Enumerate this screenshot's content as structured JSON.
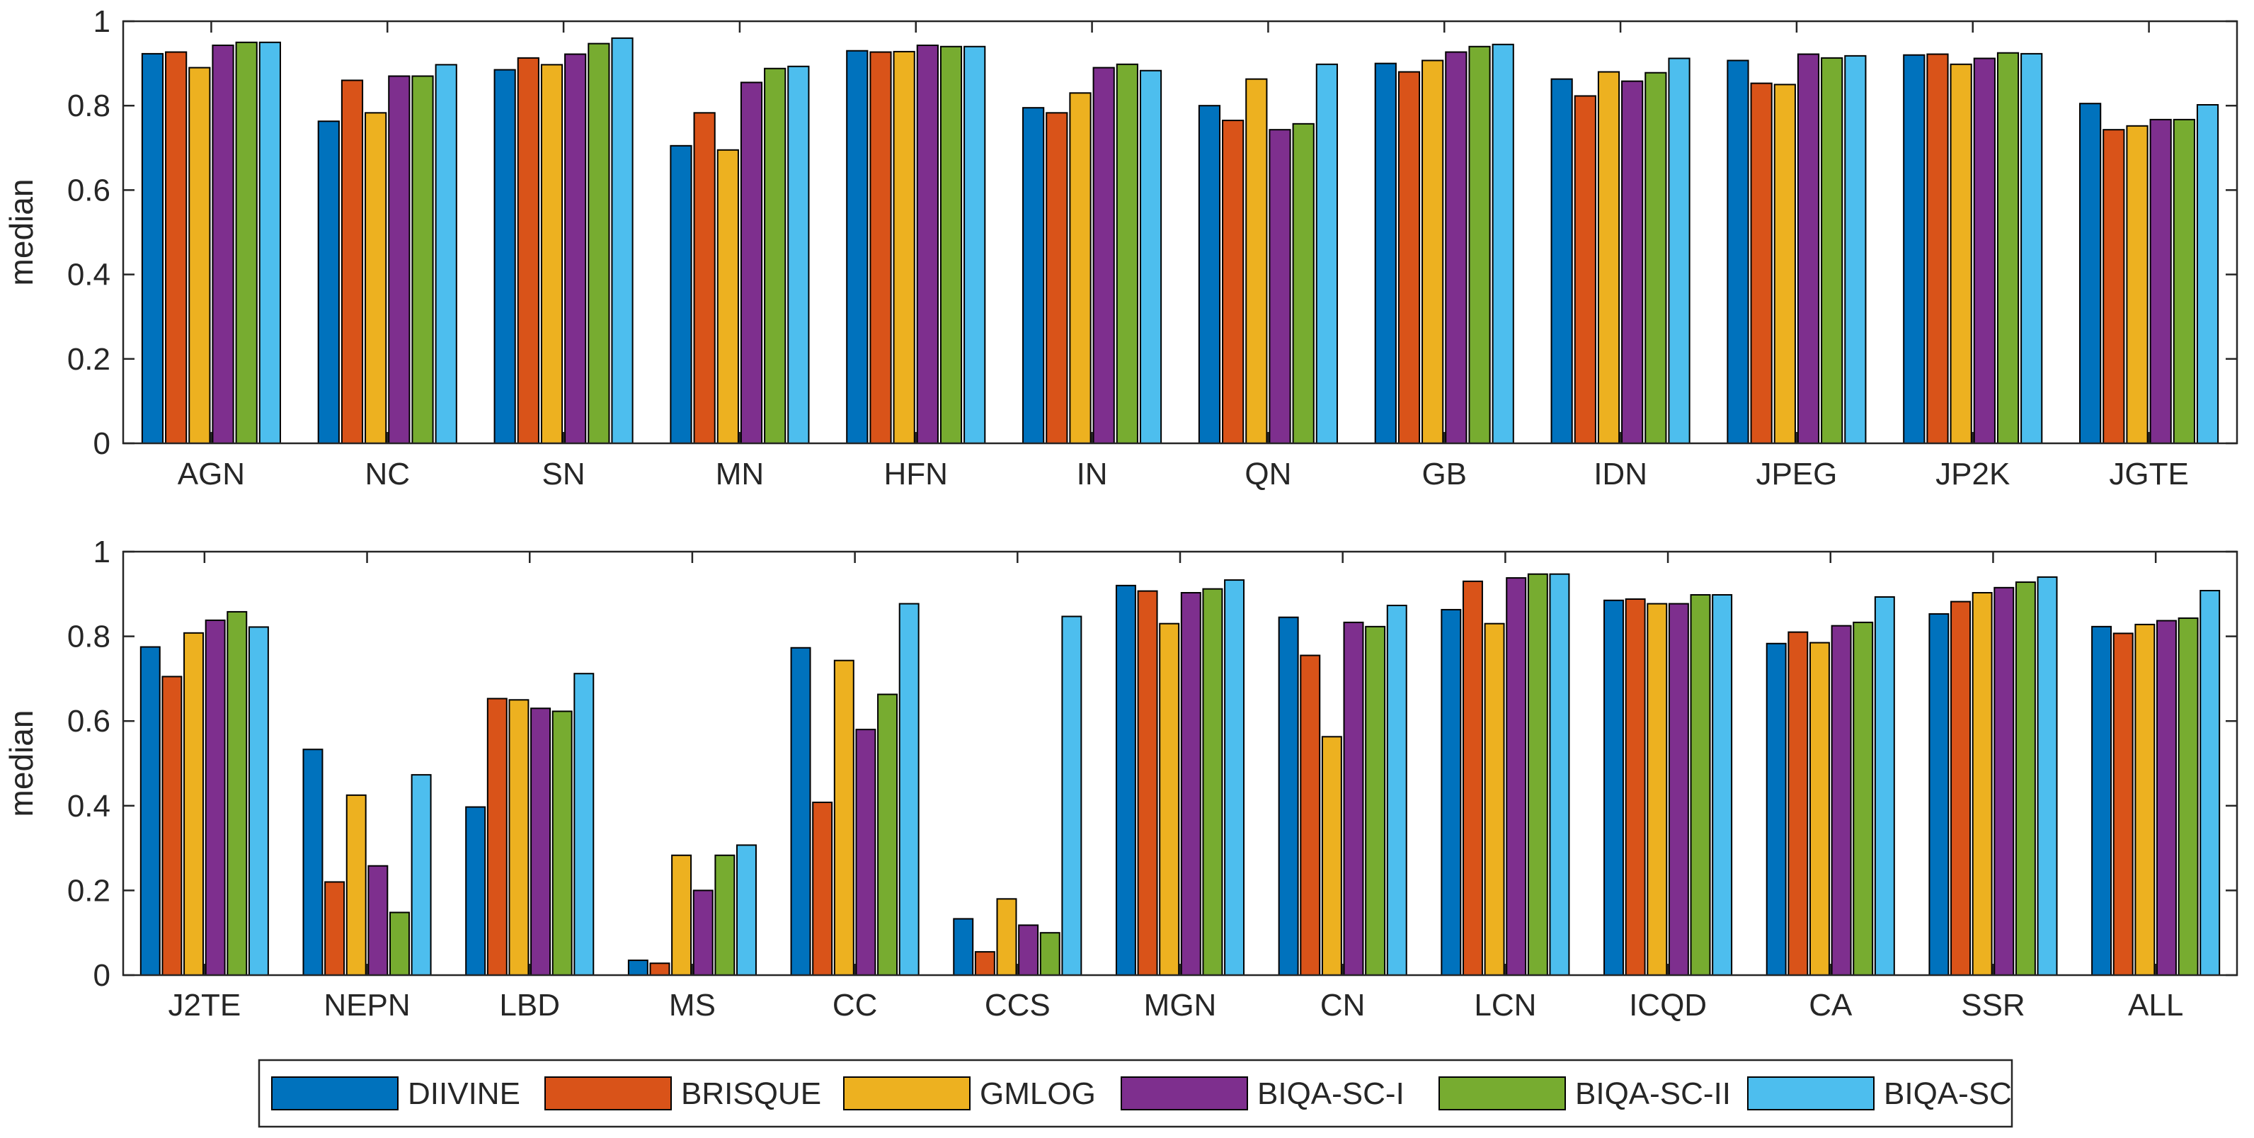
{
  "chart_data": [
    {
      "type": "bar",
      "ylabel": "median",
      "ylim": [
        0,
        1
      ],
      "yticks": [
        "0",
        "0.2",
        "0.4",
        "0.6",
        "0.8",
        "1"
      ],
      "categories": [
        "AGN",
        "NC",
        "SN",
        "MN",
        "HFN",
        "IN",
        "QN",
        "GB",
        "IDN",
        "JPEG",
        "JP2K",
        "JGTE"
      ],
      "series": [
        {
          "name": "DIIVINE",
          "values": [
            0.923,
            0.763,
            0.885,
            0.705,
            0.93,
            0.795,
            0.8,
            0.9,
            0.863,
            0.907,
            0.92,
            0.805
          ]
        },
        {
          "name": "BRISQUE",
          "values": [
            0.927,
            0.86,
            0.913,
            0.783,
            0.927,
            0.783,
            0.765,
            0.88,
            0.823,
            0.853,
            0.922,
            0.743
          ]
        },
        {
          "name": "GMLOG",
          "values": [
            0.89,
            0.783,
            0.897,
            0.695,
            0.928,
            0.83,
            0.863,
            0.907,
            0.88,
            0.85,
            0.898,
            0.752
          ]
        },
        {
          "name": "BIQA-SC-I",
          "values": [
            0.943,
            0.87,
            0.922,
            0.855,
            0.943,
            0.89,
            0.743,
            0.927,
            0.858,
            0.922,
            0.912,
            0.767
          ]
        },
        {
          "name": "BIQA-SC-II",
          "values": [
            0.95,
            0.87,
            0.947,
            0.888,
            0.94,
            0.898,
            0.757,
            0.94,
            0.878,
            0.913,
            0.925,
            0.767
          ]
        },
        {
          "name": "BIQA-SC",
          "values": [
            0.95,
            0.897,
            0.96,
            0.893,
            0.94,
            0.883,
            0.898,
            0.945,
            0.912,
            0.918,
            0.923,
            0.802
          ]
        }
      ]
    },
    {
      "type": "bar",
      "ylabel": "median",
      "ylim": [
        0,
        1
      ],
      "yticks": [
        "0",
        "0.2",
        "0.4",
        "0.6",
        "0.8",
        "1"
      ],
      "categories": [
        "J2TE",
        "NEPN",
        "LBD",
        "MS",
        "CC",
        "CCS",
        "MGN",
        "CN",
        "LCN",
        "ICQD",
        "CA",
        "SSR",
        "ALL"
      ],
      "series": [
        {
          "name": "DIIVINE",
          "values": [
            0.775,
            0.533,
            0.397,
            0.035,
            0.773,
            0.133,
            0.92,
            0.845,
            0.863,
            0.885,
            0.783,
            0.853,
            0.823
          ]
        },
        {
          "name": "BRISQUE",
          "values": [
            0.705,
            0.22,
            0.653,
            0.028,
            0.408,
            0.055,
            0.907,
            0.755,
            0.93,
            0.888,
            0.81,
            0.882,
            0.807
          ]
        },
        {
          "name": "GMLOG",
          "values": [
            0.808,
            0.425,
            0.65,
            0.283,
            0.743,
            0.18,
            0.83,
            0.563,
            0.83,
            0.877,
            0.785,
            0.903,
            0.828
          ]
        },
        {
          "name": "BIQA-SC-I",
          "values": [
            0.838,
            0.258,
            0.63,
            0.2,
            0.58,
            0.118,
            0.903,
            0.833,
            0.938,
            0.877,
            0.825,
            0.915,
            0.837
          ]
        },
        {
          "name": "BIQA-SC-II",
          "values": [
            0.858,
            0.148,
            0.623,
            0.283,
            0.663,
            0.1,
            0.912,
            0.823,
            0.947,
            0.898,
            0.833,
            0.928,
            0.843
          ]
        },
        {
          "name": "BIQA-SC",
          "values": [
            0.822,
            0.473,
            0.712,
            0.307,
            0.877,
            0.847,
            0.933,
            0.873,
            0.947,
            0.898,
            0.893,
            0.94,
            0.908
          ]
        }
      ]
    }
  ],
  "legend": {
    "entries": [
      "DIIVINE",
      "BRISQUE",
      "GMLOG",
      "BIQA-SC-I",
      "BIQA-SC-II",
      "BIQA-SC"
    ],
    "colors": [
      "#0072BD",
      "#D95319",
      "#EDB120",
      "#7E2F8E",
      "#77AC30",
      "#4DBEEE"
    ],
    "placement": "bottom-center"
  }
}
